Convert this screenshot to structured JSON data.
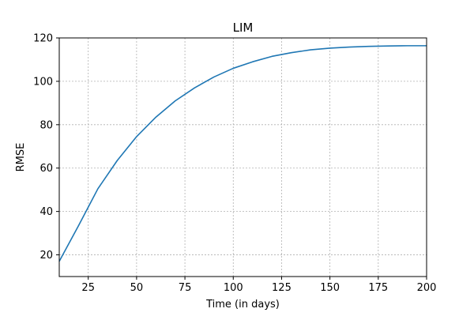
{
  "chart_data": {
    "type": "line",
    "title": "LIM",
    "xlabel": "Time (in days)",
    "ylabel": "RMSE",
    "xlim": [
      10,
      200
    ],
    "ylim": [
      10,
      120
    ],
    "xticks": [
      25,
      50,
      75,
      100,
      125,
      150,
      175,
      200
    ],
    "yticks": [
      20,
      40,
      60,
      80,
      100,
      120
    ],
    "grid": true,
    "line_color": "#1f77b4",
    "grid_color": "#b0b0b0",
    "x": [
      10,
      20,
      30,
      40,
      50,
      60,
      70,
      80,
      90,
      100,
      110,
      120,
      130,
      140,
      150,
      160,
      170,
      180,
      190,
      200
    ],
    "y": [
      17,
      33.5,
      50.5,
      63.5,
      74.5,
      83.5,
      91,
      97,
      102,
      106,
      109,
      111.5,
      113.2,
      114.5,
      115.3,
      115.8,
      116.1,
      116.3,
      116.4,
      116.4
    ]
  }
}
